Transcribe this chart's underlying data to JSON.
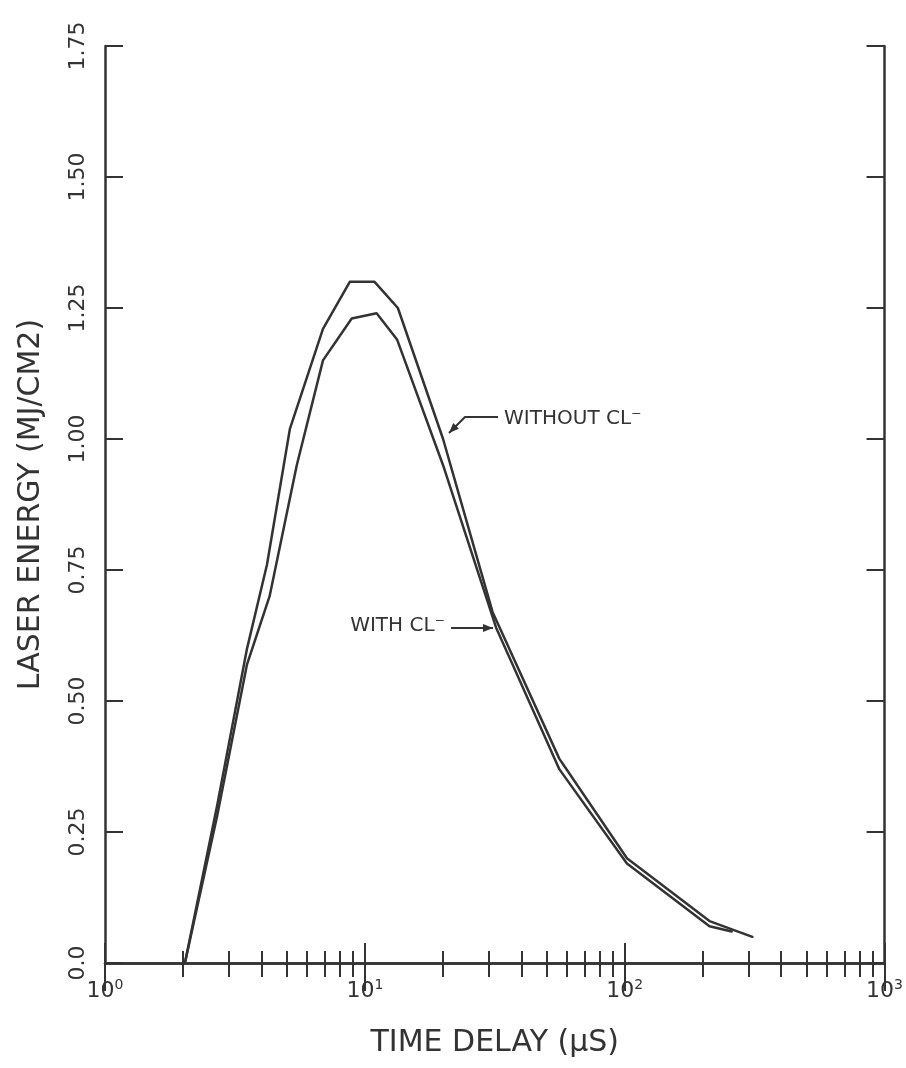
{
  "chart_data": {
    "type": "line",
    "xlabel": "TIME DELAY (μS)",
    "ylabel": "LASER ENERGY (MJ/CM2)",
    "series": [
      {
        "name": "WITHOUT CL⁻",
        "color": "#333333",
        "x": [
          2.03,
          2.7,
          3.52,
          4.2,
          5.15,
          6.9,
          8.75,
          10.9,
          13.4,
          20,
          31,
          56,
          102,
          212,
          310
        ],
        "values": [
          0,
          0.3,
          0.6,
          0.76,
          1.02,
          1.21,
          1.3,
          1.3,
          1.25,
          1.0,
          0.67,
          0.39,
          0.2,
          0.08,
          0.05
        ]
      },
      {
        "name": "WITH CL⁻",
        "color": "#333333",
        "x": [
          2.03,
          2.7,
          3.52,
          4.3,
          5.47,
          6.9,
          8.9,
          11.1,
          13.3,
          20,
          32,
          56,
          102,
          212,
          258
        ],
        "values": [
          0,
          0.28,
          0.57,
          0.7,
          0.95,
          1.15,
          1.23,
          1.24,
          1.19,
          0.95,
          0.64,
          0.37,
          0.19,
          0.07,
          0.06
        ]
      }
    ],
    "log": "x",
    "xlim": [
      1,
      1000
    ],
    "xticks": [
      {
        "value": 1,
        "label": "10$^{0}$"
      },
      {
        "value": 10,
        "label": "10$^{1}$"
      },
      {
        "value": 100,
        "label": "10$^{2}$"
      },
      {
        "value": 1000,
        "label": "10$^{3}$"
      }
    ],
    "ylim": [
      0,
      1.75
    ],
    "yticks": [
      {
        "value": 0,
        "label": "0.0"
      },
      {
        "value": 0.25,
        "label": "0.25"
      },
      {
        "value": 0.5,
        "label": "0.50"
      },
      {
        "value": 0.75,
        "label": "0.75"
      },
      {
        "value": 1,
        "label": "1.00"
      },
      {
        "value": 1.25,
        "label": "1.25"
      },
      {
        "value": 1.5,
        "label": "1.50"
      },
      {
        "value": 1.75,
        "label": "1.75"
      }
    ],
    "grid": false,
    "marker": "none",
    "line_style": "solid"
  }
}
